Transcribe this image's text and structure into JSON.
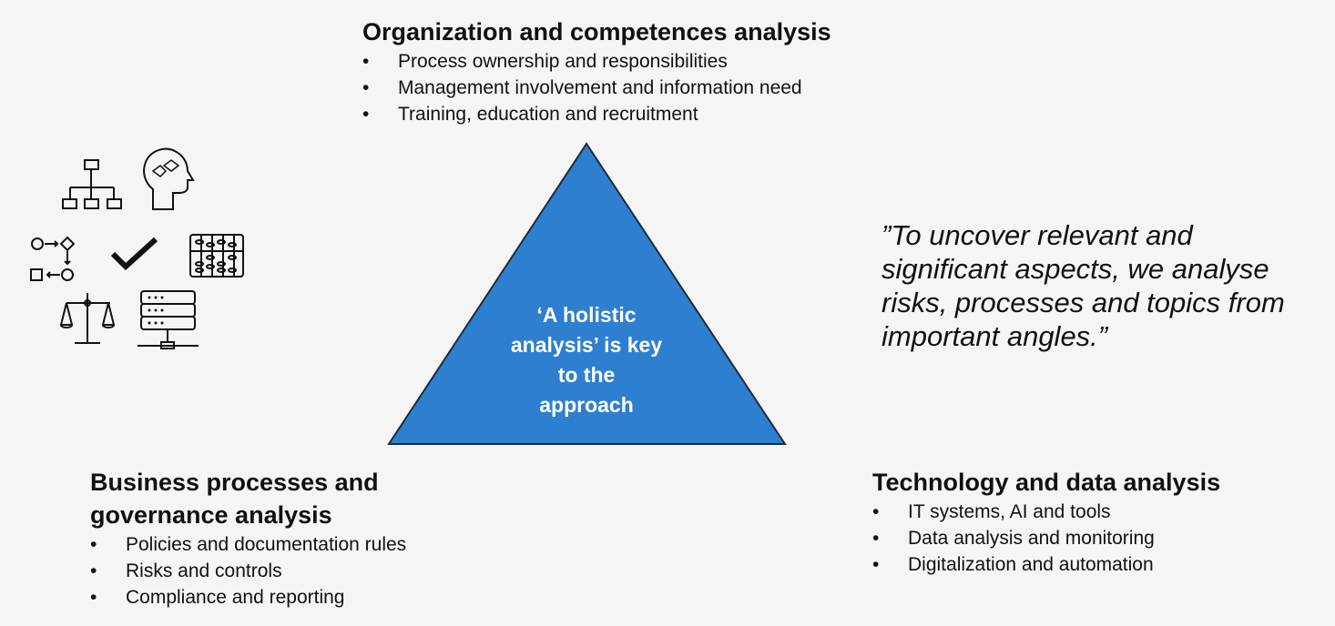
{
  "colors": {
    "background": "#f5f5f5",
    "triangle": "#2e7fd0",
    "triangle_border": "#1b2b3b",
    "text": "#111111"
  },
  "top": {
    "title": "Organization and competences analysis",
    "items": [
      "Process ownership and responsibilities",
      "Management involvement and information need",
      "Training, education and recruitment"
    ]
  },
  "left": {
    "title_line1": "Business processes and",
    "title_line2": "governance analysis",
    "items": [
      "Policies and documentation rules",
      "Risks and controls",
      "Compliance and reporting"
    ]
  },
  "right": {
    "title": "Technology and data analysis",
    "items": [
      "IT systems, AI and tools",
      "Data analysis and monitoring",
      "Digitalization and automation"
    ]
  },
  "triangle": {
    "line1": "‘A holistic",
    "line2": "analysis’ is key",
    "line3": "to the",
    "line4": "approach"
  },
  "quote": "”To uncover relevant and significant aspects, we analyse risks, processes and topics from important angles.”",
  "icons": [
    "org-chart-icon",
    "head-puzzle-icon",
    "process-flow-icon",
    "checkmark-icon",
    "abacus-icon",
    "scales-icon",
    "server-network-icon"
  ]
}
